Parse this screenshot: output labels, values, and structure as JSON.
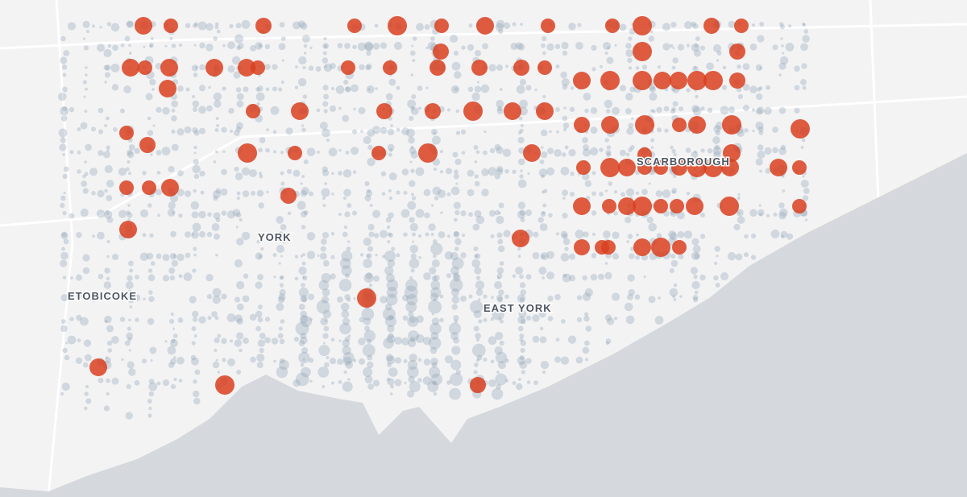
{
  "labels": {
    "etobicoke": "ETOBICOKE",
    "york": "YORK",
    "east_york": "EAST YORK",
    "scarborough": "SCARBOROUGH"
  }
}
